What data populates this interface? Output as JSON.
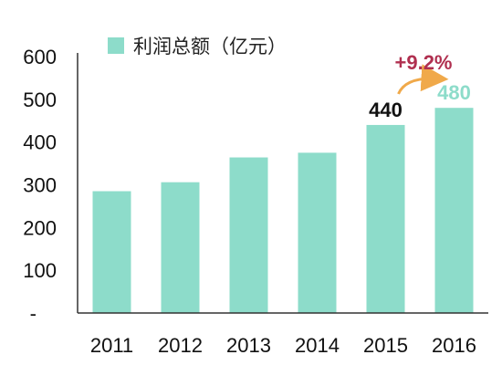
{
  "chart_data": {
    "type": "bar",
    "categories": [
      "2011",
      "2012",
      "2013",
      "2014",
      "2015",
      "2016"
    ],
    "series": [
      {
        "name": "利润总额（亿元）",
        "values": [
          285,
          306,
          364,
          375,
          440,
          480
        ]
      }
    ],
    "ylim": [
      0,
      600
    ],
    "y_ticks": [
      "-",
      "100",
      "200",
      "300",
      "400",
      "500",
      "600"
    ],
    "grid": false,
    "legend_position": "top",
    "data_labels": [
      {
        "category": "2015",
        "text": "440"
      },
      {
        "category": "2016",
        "text": "480"
      }
    ],
    "growth_annotation": "+9.2%",
    "colors": {
      "bar": "#8ddcca",
      "axis": "#333333",
      "label_2015": "#111111",
      "label_2016": "#8ddcca",
      "growth": "#b03050",
      "arrow": "#f0a94a"
    }
  }
}
